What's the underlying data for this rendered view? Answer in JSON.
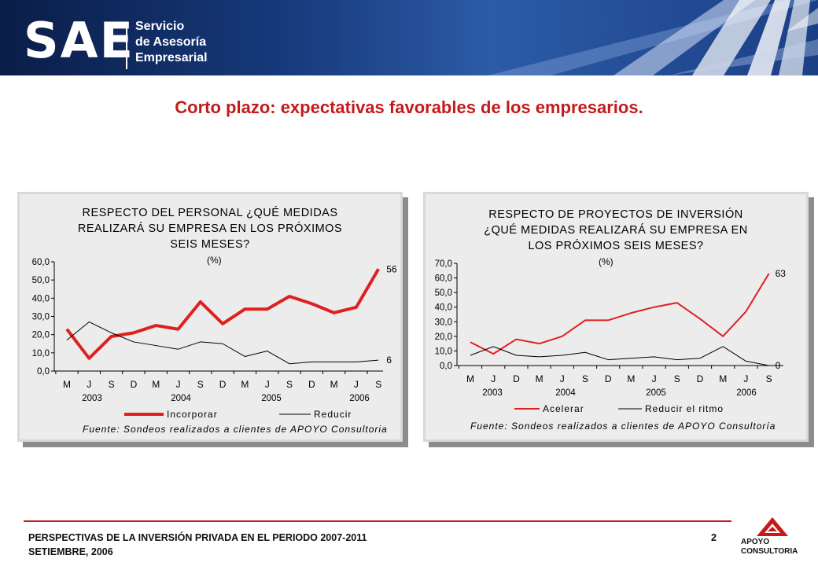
{
  "header": {
    "logo": "SAE",
    "subtitle_lines": [
      "Servicio",
      "de Asesoría",
      "Empresarial"
    ]
  },
  "slide": {
    "title": "Corto plazo: expectativas favorables de los empresarios."
  },
  "footer": {
    "line1": "PERSPECTIVAS DE LA INVERSIÓN PRIVADA EN EL PERIODO 2007-2011",
    "line2": "SETIEMBRE, 2006",
    "page": "2",
    "brand_line1": "APOYO",
    "brand_line2": "CONSULTORIA"
  },
  "chart_data": [
    {
      "type": "line",
      "title_lines": [
        "RESPECTO DEL PERSONAL ¿QUÉ MEDIDAS",
        "REALIZARÁ SU EMPRESA EN LOS PRÓXIMOS",
        "SEIS MESES?"
      ],
      "unit": "(%)",
      "source": "Fuente: Sondeos realizados a clientes de APOYO Consultoria",
      "categories": [
        "M",
        "J",
        "S",
        "D",
        "M",
        "J",
        "S",
        "D",
        "M",
        "J",
        "S",
        "D",
        "M",
        "J",
        "S"
      ],
      "years": [
        "2003",
        "2004",
        "2005",
        "2006"
      ],
      "ylim": [
        0,
        60
      ],
      "yticks": [
        "0,0",
        "10,0",
        "20,0",
        "30,0",
        "40,0",
        "50,0",
        "60,0"
      ],
      "series": [
        {
          "name": "Incorporar",
          "color": "#e02020",
          "width": 4,
          "values": [
            23,
            7,
            19,
            21,
            25,
            23,
            38,
            26,
            34,
            34,
            41,
            37,
            32,
            35,
            56
          ],
          "end_label": "56"
        },
        {
          "name": "Reducir",
          "color": "#000000",
          "width": 1,
          "values": [
            17,
            27,
            21,
            16,
            14,
            12,
            16,
            15,
            8,
            11,
            4,
            5,
            5,
            5,
            6
          ],
          "end_label": "6"
        }
      ]
    },
    {
      "type": "line",
      "title_lines": [
        "RESPECTO DE PROYECTOS DE INVERSIÓN",
        "¿QUÉ MEDIDAS REALIZARÁ SU EMPRESA EN",
        "LOS PRÓXIMOS SEIS MESES?"
      ],
      "unit": "(%)",
      "source": "Fuente: Sondeos realizados a clientes de APOYO Consultoría",
      "categories": [
        "M",
        "J",
        "D",
        "M",
        "J",
        "S",
        "D",
        "M",
        "J",
        "S",
        "D",
        "M",
        "J",
        "S"
      ],
      "years": [
        "2003",
        "2004",
        "2005",
        "2006"
      ],
      "ylim": [
        0,
        70
      ],
      "yticks": [
        "0,0",
        "10,0",
        "20,0",
        "30,0",
        "40,0",
        "50,0",
        "60,0",
        "70,0"
      ],
      "series": [
        {
          "name": "Acelerar",
          "color": "#e02020",
          "width": 2,
          "values": [
            16,
            8,
            18,
            15,
            20,
            31,
            31,
            36,
            40,
            43,
            32,
            20,
            37,
            63
          ],
          "end_label": "63"
        },
        {
          "name": "Reducir el ritmo",
          "color": "#000000",
          "width": 1,
          "values": [
            7,
            13,
            7,
            6,
            7,
            9,
            4,
            5,
            6,
            4,
            5,
            13,
            3,
            0
          ],
          "end_label": "0"
        }
      ]
    }
  ]
}
